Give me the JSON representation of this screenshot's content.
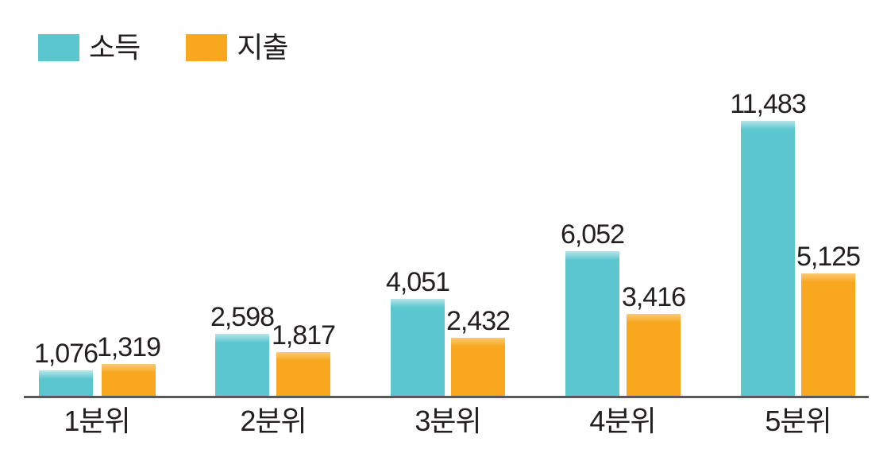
{
  "chart_data": {
    "type": "bar",
    "categories": [
      "1분위",
      "2분위",
      "3분위",
      "4분위",
      "5분위"
    ],
    "series": [
      {
        "name": "소득",
        "color": "#5cc6cf",
        "color_light": "#b9e5e8",
        "values": [
          1076,
          2598,
          4051,
          6052,
          11483
        ],
        "labels": [
          "1,076",
          "2,598",
          "4,051",
          "6,052",
          "11,483"
        ]
      },
      {
        "name": "지출",
        "color": "#f8a71f",
        "color_light": "#fcca74",
        "values": [
          1319,
          1817,
          2432,
          3416,
          5125
        ],
        "labels": [
          "1,319",
          "1,817",
          "2,432",
          "3,416",
          "5,125"
        ]
      }
    ],
    "ylim": [
      0,
      11483
    ],
    "grid": false,
    "legend_position": "top-left",
    "axis_color": "#58595b",
    "text_color": "#231f20"
  }
}
